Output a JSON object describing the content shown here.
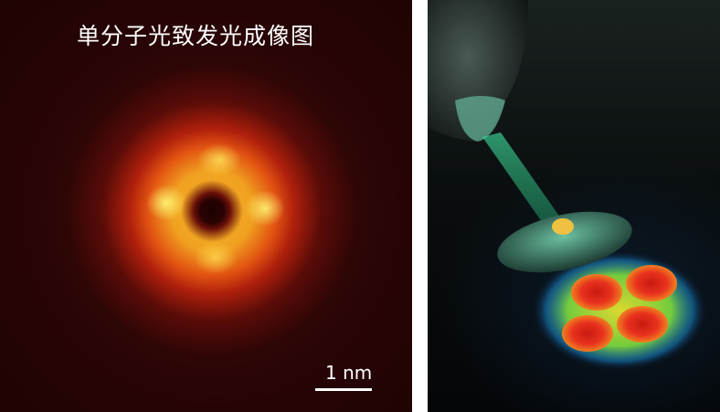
{
  "left_panel": {
    "title": "单分子光致发光成像图",
    "scale_bar_label": "1 nm",
    "colors": {
      "background": "#250404",
      "ring_core": "#f5b22a",
      "ring_edge": "#b0200c"
    }
  },
  "right_panel": {
    "colors": {
      "background": "#070a0c",
      "beam": "#2ecf8a",
      "lobes": "#e8321e",
      "halo": "#f2ee30"
    }
  }
}
